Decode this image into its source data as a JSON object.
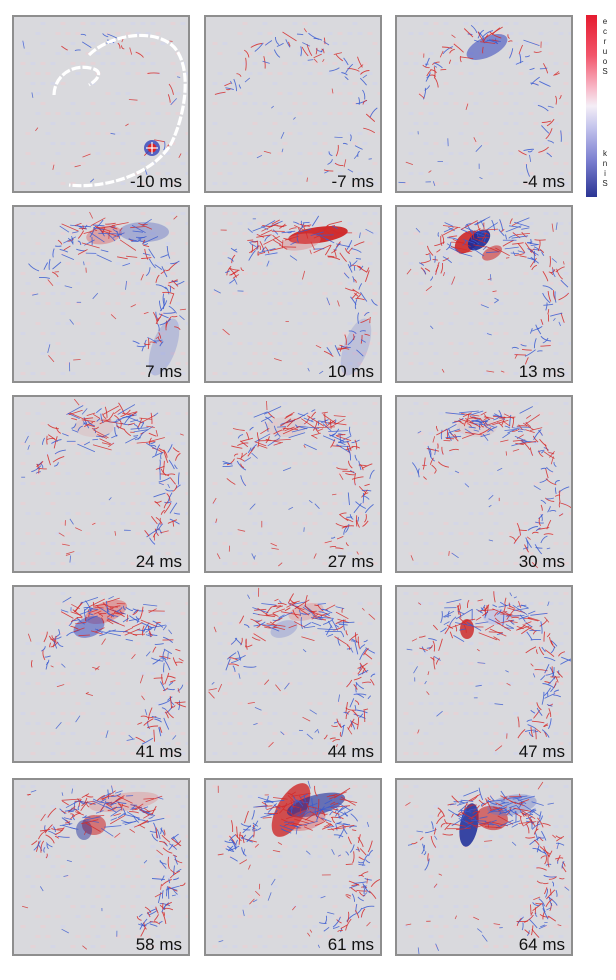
{
  "panels": [
    {
      "label": "-10 ms"
    },
    {
      "label": "-7 ms"
    },
    {
      "label": "-4 ms"
    },
    {
      "label": "7 ms"
    },
    {
      "label": "10 ms"
    },
    {
      "label": "13 ms"
    },
    {
      "label": "24 ms"
    },
    {
      "label": "27 ms"
    },
    {
      "label": "30 ms"
    },
    {
      "label": "41 ms"
    },
    {
      "label": "44 ms"
    },
    {
      "label": "47 ms"
    },
    {
      "label": "58 ms"
    },
    {
      "label": "61 ms"
    },
    {
      "label": "64 ms"
    }
  ],
  "colorbar": {
    "top_text": "Source",
    "bottom_text": "Sink",
    "colors": {
      "source": "#e51b2f",
      "sink": "#2b3594",
      "background": "#d9d9dd",
      "mid": "#f4eef6"
    }
  }
}
